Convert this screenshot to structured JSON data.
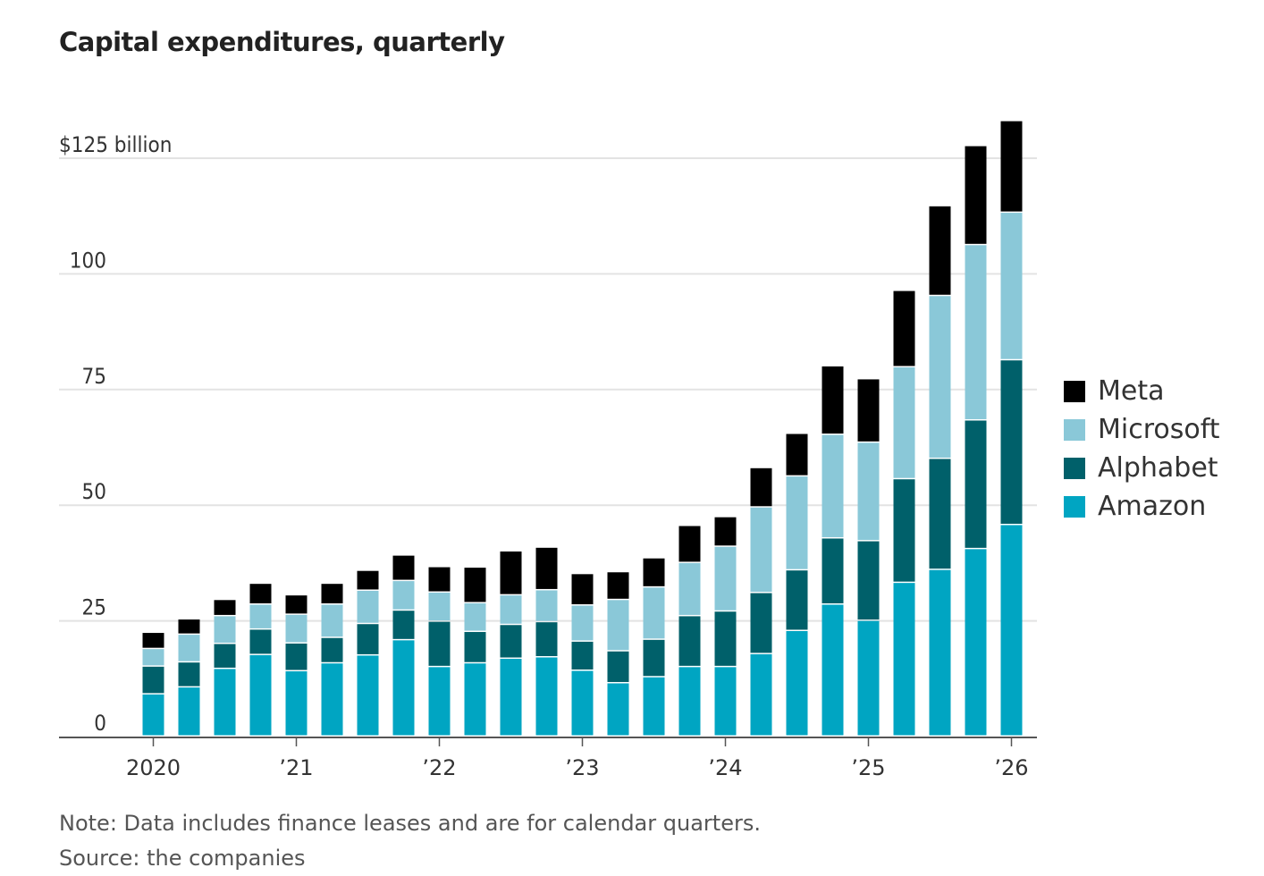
{
  "title": "Capital expenditures, quarterly",
  "colors": {
    "Meta": "#000000",
    "Microsoft": "#8ac8d8",
    "Alphabet": "#00606a",
    "Amazon": "#00a5c2",
    "grid": "#e3e3e3",
    "axis": "#555555"
  },
  "legend": [
    "Meta",
    "Microsoft",
    "Alphabet",
    "Amazon"
  ],
  "note": "Note: Data includes finance leases and are for calendar quarters.",
  "source": "Source: the companies",
  "chart_data": {
    "type": "bar",
    "stacked": true,
    "title": "Capital expenditures, quarterly",
    "ylabel_top": "$125 billion",
    "ylim": [
      0,
      125
    ],
    "yticks": [
      0,
      25,
      50,
      75,
      100,
      125
    ],
    "ytick_labels": [
      "0",
      "25",
      "50",
      "75",
      "100",
      "$125 billion"
    ],
    "categories": [
      "Q1 2020",
      "Q2 2020",
      "Q3 2020",
      "Q4 2020",
      "Q1 2021",
      "Q2 2021",
      "Q3 2021",
      "Q4 2021",
      "Q1 2022",
      "Q2 2022",
      "Q3 2022",
      "Q4 2022",
      "Q1 2023",
      "Q2 2023",
      "Q3 2023",
      "Q4 2023",
      "Q1 2024",
      "Q2 2024",
      "Q3 2024",
      "Q4 2024",
      "Q1 2025",
      "Q2 2025",
      "Q3 2025",
      "Q4 2025",
      "Q1 2026"
    ],
    "xtick_labels": [
      {
        "index": 0,
        "label": "2020"
      },
      {
        "index": 4,
        "label": "’21"
      },
      {
        "index": 8,
        "label": "’22"
      },
      {
        "index": 12,
        "label": "’23"
      },
      {
        "index": 16,
        "label": "’24"
      },
      {
        "index": 20,
        "label": "’25"
      },
      {
        "index": 24,
        "label": "’26"
      }
    ],
    "series": [
      {
        "name": "Amazon",
        "values": [
          9.1,
          10.6,
          14.6,
          17.6,
          14.1,
          15.8,
          17.5,
          20.8,
          15.0,
          15.8,
          16.8,
          17.1,
          14.2,
          11.5,
          12.8,
          15.0,
          15.0,
          17.8,
          22.8,
          28.5,
          25.0,
          33.2,
          36.0,
          40.5,
          45.7
        ]
      },
      {
        "name": "Alphabet",
        "values": [
          6.0,
          5.4,
          5.4,
          5.5,
          6.0,
          5.5,
          6.8,
          6.4,
          9.8,
          6.8,
          7.3,
          7.6,
          6.3,
          6.9,
          8.1,
          11.0,
          12.0,
          13.2,
          13.1,
          14.3,
          17.2,
          22.4,
          24.0,
          27.8,
          35.6
        ]
      },
      {
        "name": "Microsoft",
        "values": [
          3.8,
          6.0,
          6.0,
          5.4,
          6.2,
          7.2,
          7.2,
          6.4,
          6.3,
          6.2,
          6.4,
          6.9,
          7.8,
          11.1,
          11.3,
          11.5,
          14.0,
          18.5,
          20.3,
          22.4,
          21.3,
          24.2,
          35.2,
          37.9,
          31.9
        ]
      },
      {
        "name": "Meta",
        "values": [
          3.5,
          3.3,
          3.5,
          4.5,
          4.2,
          4.5,
          4.3,
          5.5,
          5.5,
          7.7,
          9.5,
          9.2,
          6.8,
          6.0,
          6.3,
          8.0,
          6.4,
          8.5,
          9.2,
          14.8,
          13.7,
          16.5,
          19.4,
          21.4,
          19.8
        ]
      }
    ]
  }
}
